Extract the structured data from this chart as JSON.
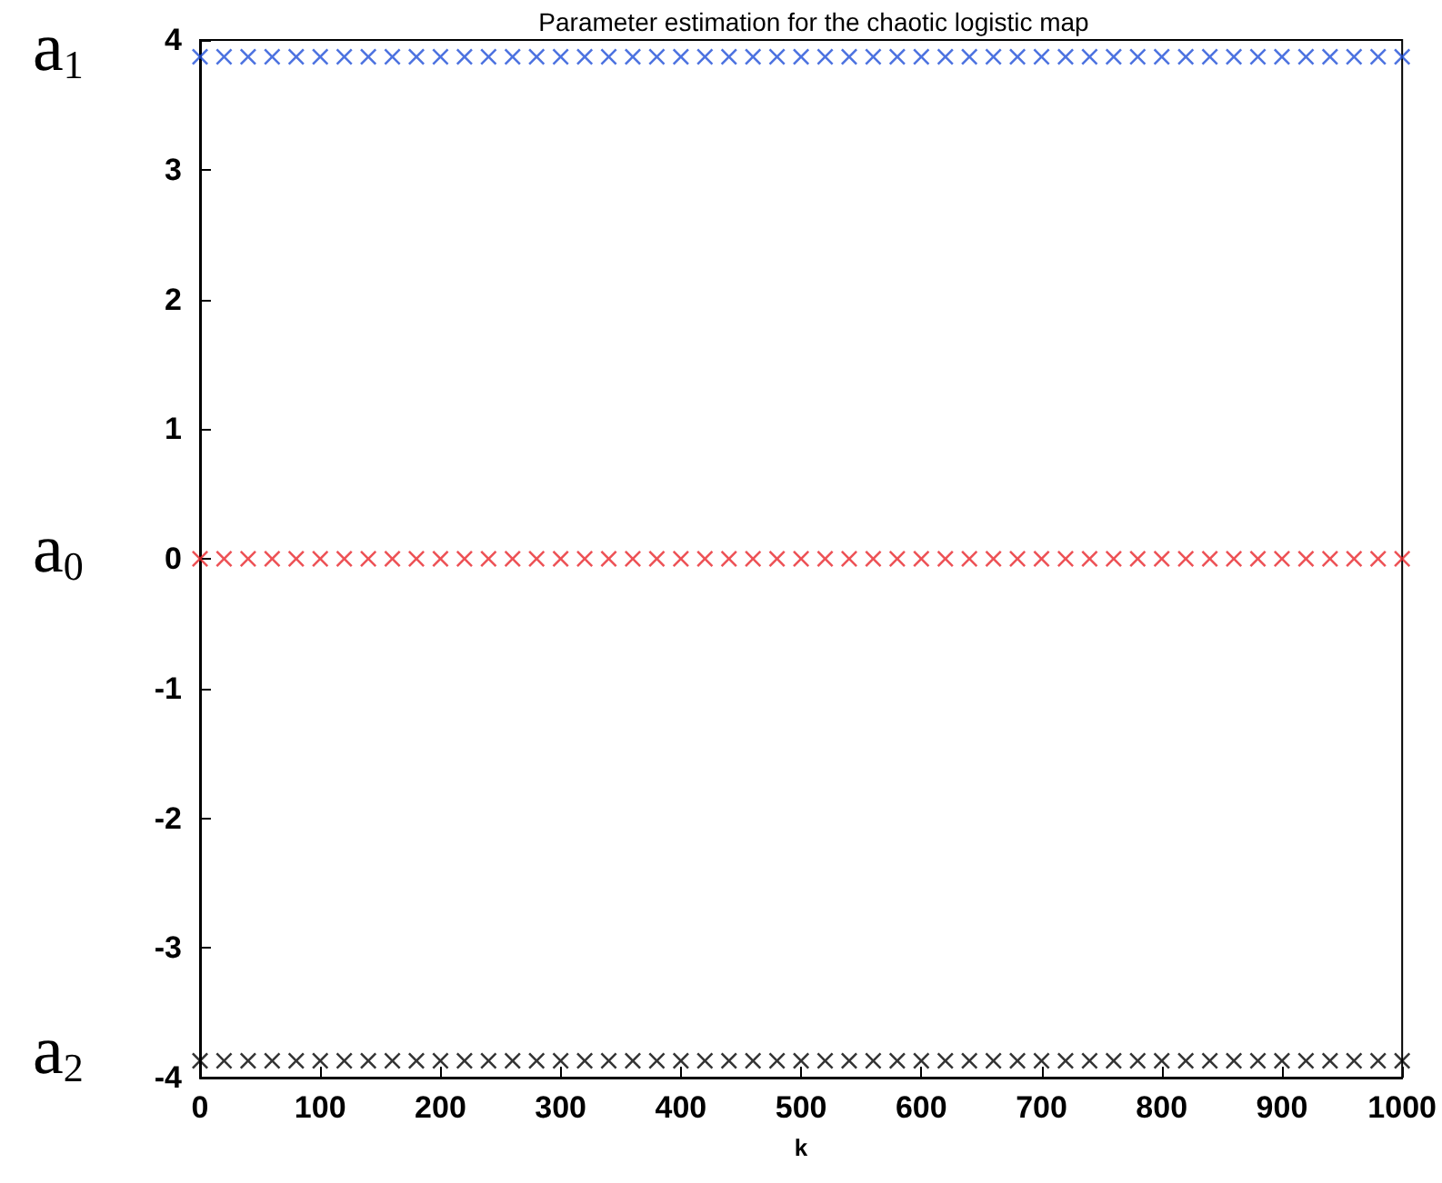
{
  "chart_data": {
    "type": "scatter",
    "title": "Parameter estimation for the chaotic logistic map",
    "xlabel": "k",
    "x": [
      0,
      20,
      40,
      60,
      80,
      100,
      120,
      140,
      160,
      180,
      200,
      220,
      240,
      260,
      280,
      300,
      320,
      340,
      360,
      380,
      400,
      420,
      440,
      460,
      480,
      500,
      520,
      540,
      560,
      580,
      600,
      620,
      640,
      660,
      680,
      700,
      720,
      740,
      760,
      780,
      800,
      820,
      840,
      860,
      880,
      900,
      920,
      940,
      960,
      980,
      1000
    ],
    "series": [
      {
        "name": "a$_{1}$",
        "color": "#1f4fd8",
        "values": [
          3.87,
          3.87,
          3.87,
          3.87,
          3.87,
          3.87,
          3.87,
          3.87,
          3.87,
          3.87,
          3.87,
          3.87,
          3.87,
          3.87,
          3.87,
          3.87,
          3.87,
          3.87,
          3.87,
          3.87,
          3.87,
          3.87,
          3.87,
          3.87,
          3.87,
          3.87,
          3.87,
          3.87,
          3.87,
          3.87,
          3.87,
          3.87,
          3.87,
          3.87,
          3.87,
          3.87,
          3.87,
          3.87,
          3.87,
          3.87,
          3.87,
          3.87,
          3.87,
          3.87,
          3.87,
          3.87,
          3.87,
          3.87,
          3.87,
          3.87,
          3.87
        ]
      },
      {
        "name": "a$_{0}$",
        "color": "#e8262a",
        "values": [
          0,
          0,
          0,
          0,
          0,
          0,
          0,
          0,
          0,
          0,
          0,
          0,
          0,
          0,
          0,
          0,
          0,
          0,
          0,
          0,
          0,
          0,
          0,
          0,
          0,
          0,
          0,
          0,
          0,
          0,
          0,
          0,
          0,
          0,
          0,
          0,
          0,
          0,
          0,
          0,
          0,
          0,
          0,
          0,
          0,
          0,
          0,
          0,
          0,
          0,
          0
        ]
      },
      {
        "name": "a$_{2}$",
        "color": "#000000",
        "values": [
          -3.87,
          -3.87,
          -3.87,
          -3.87,
          -3.87,
          -3.87,
          -3.87,
          -3.87,
          -3.87,
          -3.87,
          -3.87,
          -3.87,
          -3.87,
          -3.87,
          -3.87,
          -3.87,
          -3.87,
          -3.87,
          -3.87,
          -3.87,
          -3.87,
          -3.87,
          -3.87,
          -3.87,
          -3.87,
          -3.87,
          -3.87,
          -3.87,
          -3.87,
          -3.87,
          -3.87,
          -3.87,
          -3.87,
          -3.87,
          -3.87,
          -3.87,
          -3.87,
          -3.87,
          -3.87,
          -3.87,
          -3.87,
          -3.87,
          -3.87,
          -3.87,
          -3.87,
          -3.87,
          -3.87,
          -3.87,
          -3.87,
          -3.87,
          -3.87
        ]
      }
    ],
    "xlim": [
      0,
      1000
    ],
    "xticks": [
      0,
      100,
      200,
      300,
      400,
      500,
      600,
      700,
      800,
      900,
      1000
    ],
    "ylim": [
      -4,
      4
    ],
    "yticks": [
      -4,
      -3,
      -2,
      -1,
      0,
      1,
      2,
      3,
      4
    ],
    "grid": false,
    "legend": false,
    "marker": "cross"
  }
}
